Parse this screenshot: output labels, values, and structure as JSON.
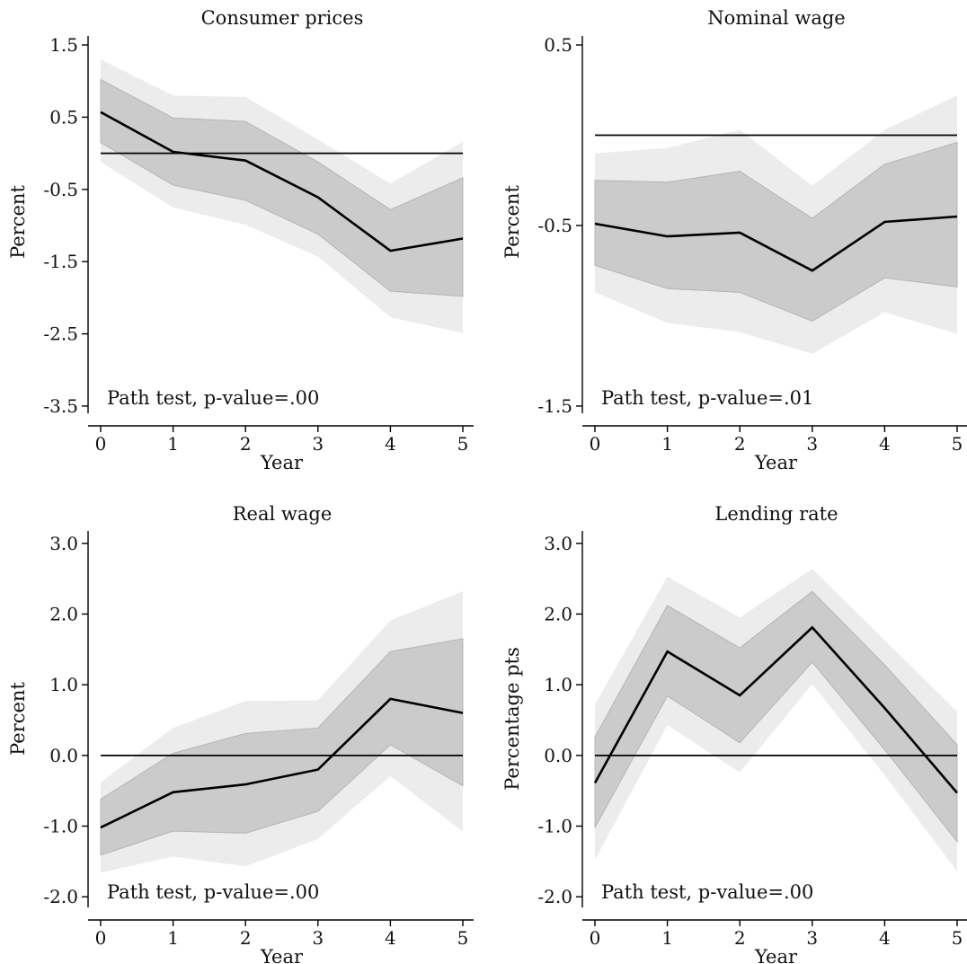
{
  "chart_data": [
    {
      "type": "line",
      "title": "Consumer prices",
      "xlabel": "Year",
      "ylabel": "Percent",
      "x": [
        0,
        1,
        2,
        3,
        4,
        5
      ],
      "xticks": [
        "0",
        "1",
        "2",
        "3",
        "4",
        "5"
      ],
      "yticks": [
        "1.5",
        "0.5",
        "-0.5",
        "-1.5",
        "-2.5",
        "-3.5"
      ],
      "ylim": [
        -3.6,
        1.6
      ],
      "series": [
        {
          "values": [
            0.57,
            0.02,
            -0.1,
            -0.61,
            -1.35,
            -1.18
          ]
        }
      ],
      "band_inner": {
        "lower": [
          0.15,
          -0.44,
          -0.65,
          -1.12,
          -1.91,
          -1.98
        ],
        "upper": [
          1.02,
          0.49,
          0.44,
          -0.12,
          -0.78,
          -0.34
        ]
      },
      "band_outer": {
        "lower": [
          -0.12,
          -0.75,
          -0.99,
          -1.43,
          -2.27,
          -2.49
        ],
        "upper": [
          1.3,
          0.8,
          0.78,
          0.19,
          -0.42,
          0.16
        ]
      },
      "zero_line": 0,
      "annotation": "Path test, p-value=.00",
      "colors": {
        "line": "#000000",
        "band_inner": "#cbcbcb",
        "band_outer": "#ececec",
        "zero": "#000000"
      }
    },
    {
      "type": "line",
      "title": "Nominal wage",
      "xlabel": "Year",
      "ylabel": "Percent",
      "x": [
        0,
        1,
        2,
        3,
        4,
        5
      ],
      "xticks": [
        "0",
        "1",
        "2",
        "3",
        "4",
        "5"
      ],
      "yticks": [
        "0.5",
        "-0.5",
        "-1.5"
      ],
      "ylim": [
        -1.54,
        0.54
      ],
      "series": [
        {
          "values": [
            -0.49,
            -0.56,
            -0.54,
            -0.75,
            -0.48,
            -0.45
          ]
        }
      ],
      "band_inner": {
        "lower": [
          -0.72,
          -0.85,
          -0.87,
          -1.03,
          -0.79,
          -0.84
        ],
        "upper": [
          -0.25,
          -0.26,
          -0.2,
          -0.46,
          -0.16,
          -0.04
        ]
      },
      "band_outer": {
        "lower": [
          -0.87,
          -1.04,
          -1.09,
          -1.21,
          -0.98,
          -1.1
        ],
        "upper": [
          -0.1,
          -0.07,
          0.03,
          -0.28,
          0.03,
          0.22
        ]
      },
      "zero_line": 0,
      "annotation": "Path test, p-value=.01",
      "colors": {
        "line": "#000000",
        "band_inner": "#cbcbcb",
        "band_outer": "#ececec",
        "zero": "#000000"
      }
    },
    {
      "type": "line",
      "title": "Real wage",
      "xlabel": "Year",
      "ylabel": "Percent",
      "x": [
        0,
        1,
        2,
        3,
        4,
        5
      ],
      "xticks": [
        "0",
        "1",
        "2",
        "3",
        "4",
        "5"
      ],
      "yticks": [
        "3.0",
        "2.0",
        "1.0",
        "0.0",
        "-1.0",
        "-2.0"
      ],
      "ylim": [
        -2.15,
        3.15
      ],
      "series": [
        {
          "values": [
            -1.02,
            -0.52,
            -0.41,
            -0.2,
            0.8,
            0.6
          ]
        }
      ],
      "band_inner": {
        "lower": [
          -1.41,
          -1.07,
          -1.1,
          -0.79,
          0.15,
          -0.43
        ],
        "upper": [
          -0.62,
          0.03,
          0.31,
          0.39,
          1.47,
          1.65
        ]
      },
      "band_outer": {
        "lower": [
          -1.66,
          -1.43,
          -1.57,
          -1.18,
          -0.29,
          -1.08
        ],
        "upper": [
          -0.38,
          0.39,
          0.77,
          0.78,
          1.91,
          2.32
        ]
      },
      "zero_line": 0,
      "annotation": "Path test, p-value=.00",
      "colors": {
        "line": "#000000",
        "band_inner": "#cbcbcb",
        "band_outer": "#ececec",
        "zero": "#000000"
      }
    },
    {
      "type": "line",
      "title": "Lending rate",
      "xlabel": "Year",
      "ylabel": "Percentage pts",
      "x": [
        0,
        1,
        2,
        3,
        4,
        5
      ],
      "xticks": [
        "0",
        "1",
        "2",
        "3",
        "4",
        "5"
      ],
      "yticks": [
        "3.0",
        "2.0",
        "1.0",
        "0.0",
        "-1.0",
        "-2.0"
      ],
      "ylim": [
        -2.15,
        3.15
      ],
      "series": [
        {
          "values": [
            -0.39,
            1.47,
            0.85,
            1.81,
            0.67,
            -0.53
          ]
        }
      ],
      "band_inner": {
        "lower": [
          -1.02,
          0.84,
          0.18,
          1.32,
          0.08,
          -1.22
        ],
        "upper": [
          0.26,
          2.12,
          1.52,
          2.32,
          1.28,
          0.15
        ]
      },
      "band_outer": {
        "lower": [
          -1.48,
          0.43,
          -0.24,
          1.01,
          -0.28,
          -1.64
        ],
        "upper": [
          0.72,
          2.53,
          1.95,
          2.64,
          1.63,
          0.62
        ]
      },
      "zero_line": 0,
      "annotation": "Path test, p-value=.00",
      "colors": {
        "line": "#000000",
        "band_inner": "#cbcbcb",
        "band_outer": "#ececec",
        "zero": "#000000"
      }
    }
  ]
}
